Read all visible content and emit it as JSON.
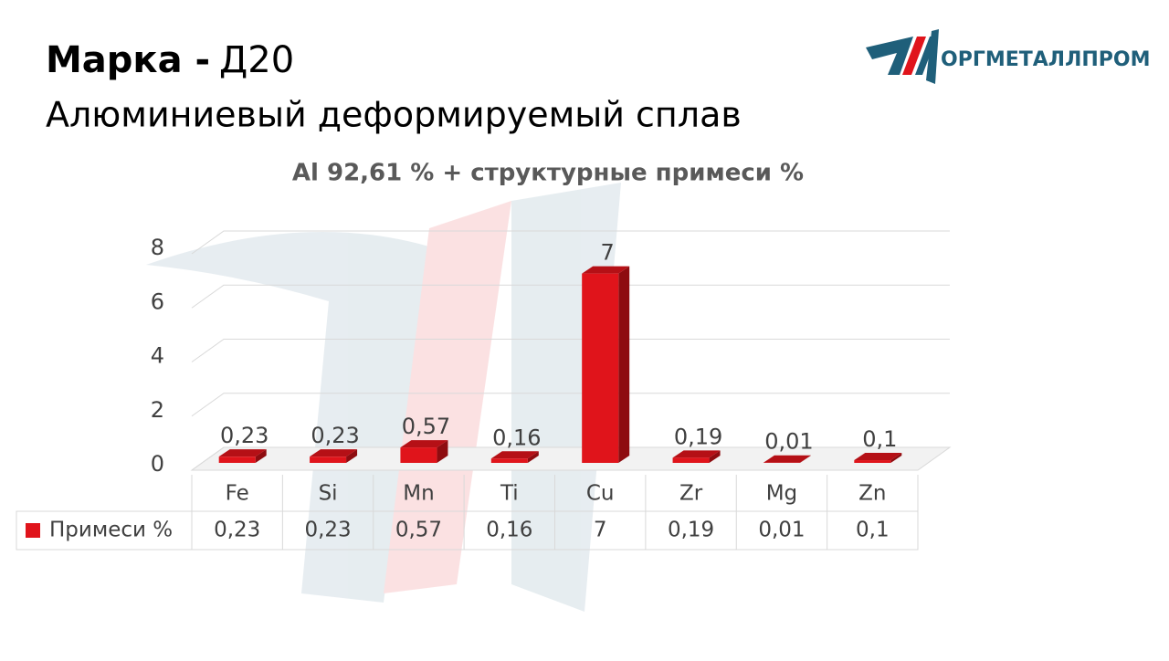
{
  "header": {
    "title_label": "Марка -",
    "grade": "Д20",
    "subtitle": "Алюминиевый деформируемый сплав",
    "logo": "ОРГМЕТАЛЛПРОМ"
  },
  "chart_data": {
    "type": "bar",
    "title": "Al 92,61 % + структурные примеси %",
    "categories": [
      "Fe",
      "Si",
      "Mn",
      "Ti",
      "Cu",
      "Zr",
      "Mg",
      "Zn"
    ],
    "series": [
      {
        "name": "Примеси %",
        "color": "#e0141b",
        "values": [
          0.23,
          0.23,
          0.57,
          0.16,
          7,
          0.19,
          0.01,
          0.1
        ],
        "value_labels": [
          "0,23",
          "0,23",
          "0,57",
          "0,16",
          "7",
          "0,19",
          "0,01",
          "0,1"
        ]
      }
    ],
    "ylim": [
      0,
      8
    ],
    "yticks": [
      0,
      2,
      4,
      6,
      8
    ],
    "grid": true
  }
}
